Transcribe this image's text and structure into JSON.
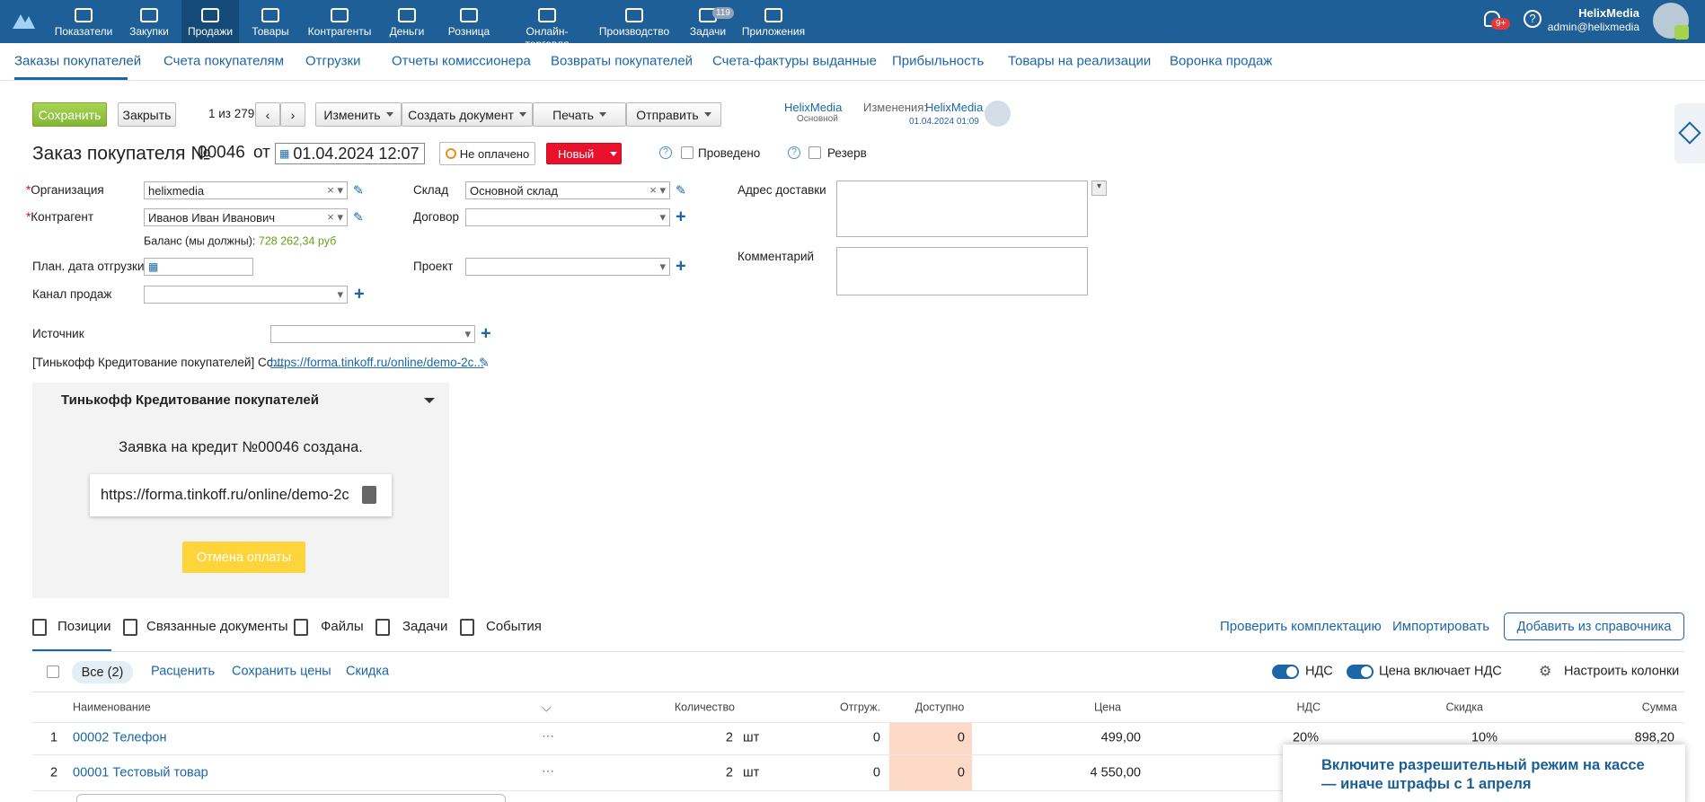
{
  "nav": {
    "items": [
      "Показатели",
      "Закупки",
      "Продажи",
      "Товары",
      "Контрагенты",
      "Деньги",
      "Розница",
      "Онлайн-торговля",
      "Производство",
      "Задачи",
      "Приложения"
    ],
    "tasks_badge": "119",
    "notif_badge": "9+",
    "user_name": "HelixMedia",
    "user_email": "admin@helixmedia"
  },
  "tabs": [
    "Заказы покупателей",
    "Счета покупателям",
    "Отгрузки",
    "Отчеты комиссионера",
    "Возвраты покупателей",
    "Счета-фактуры выданные",
    "Прибыльность",
    "Товары на реализации",
    "Воронка продаж"
  ],
  "toolbar": {
    "save": "Сохранить",
    "close": "Закрыть",
    "pager": "1 из 279",
    "change": "Изменить",
    "create": "Создать документ",
    "print": "Печать",
    "send": "Отправить",
    "owner": "HelixMedia",
    "owner_sub": "Основной",
    "changes_label": "Изменения:",
    "changes_user": "HelixMedia",
    "changes_date": "01.04.2024 01:09"
  },
  "doc": {
    "title": "Заказ покупателя №",
    "number": "00046",
    "from": "от",
    "date": "01.04.2024 12:07",
    "paid": "Не оплачено",
    "status": "Новый",
    "posted": "Проведено",
    "reserve": "Резерв"
  },
  "form": {
    "org_label": "Организация",
    "org_value": "helixmedia",
    "contr_label": "Контрагент",
    "contr_value": "Иванов Иван Иванович",
    "balance_label": "Баланс (мы должны):",
    "balance_value": "728 262,34 руб",
    "ship_label": "План. дата отгрузки",
    "channel_label": "Канал продаж",
    "warehouse_label": "Склад",
    "warehouse_value": "Основной склад",
    "contract_label": "Договор",
    "project_label": "Проект",
    "address_label": "Адрес доставки",
    "comment_label": "Комментарий",
    "source_label": "Источник",
    "tinkoff_label": "[Тинькофф Кредитование покупателей] Сс...",
    "tinkoff_link": "https://forma.tinkoff.ru/online/demo-2c..."
  },
  "panel": {
    "title": "Тинькофф Кредитование покупателей",
    "message": "Заявка на кредит №00046 создана.",
    "url": "https://forma.tinkoff.ru/online/demo-2c",
    "cancel": "Отмена оплаты"
  },
  "bottom_tabs": [
    "Позиции",
    "Связанные документы",
    "Файлы",
    "Задачи",
    "События"
  ],
  "actions": {
    "check": "Проверить комплектацию",
    "import": "Импортировать",
    "add": "Добавить из справочника",
    "all": "Все (2)",
    "reprice": "Расценить",
    "save_prices": "Сохранить цены",
    "discount": "Скидка",
    "vat": "НДС",
    "price_incl_vat": "Цена включает НДС",
    "columns": "Настроить колонки"
  },
  "table": {
    "columns": [
      "Наименование",
      "Количество",
      "Отгруж.",
      "Доступно",
      "Цена",
      "НДС",
      "Скидка",
      "Сумма"
    ],
    "rows": [
      [
        "1",
        "00002 Телефон",
        "2",
        "шт",
        "0",
        "0",
        "499,00",
        "20%",
        "10%",
        "898,20"
      ],
      [
        "2",
        "00001 Тестовый товар",
        "2",
        "шт",
        "0",
        "0",
        "4 550,00"
      ]
    ]
  },
  "popup": {
    "line1": "Включите разрешительный режим на кассе",
    "line2": "— иначе штрафы с 1 апреля"
  }
}
